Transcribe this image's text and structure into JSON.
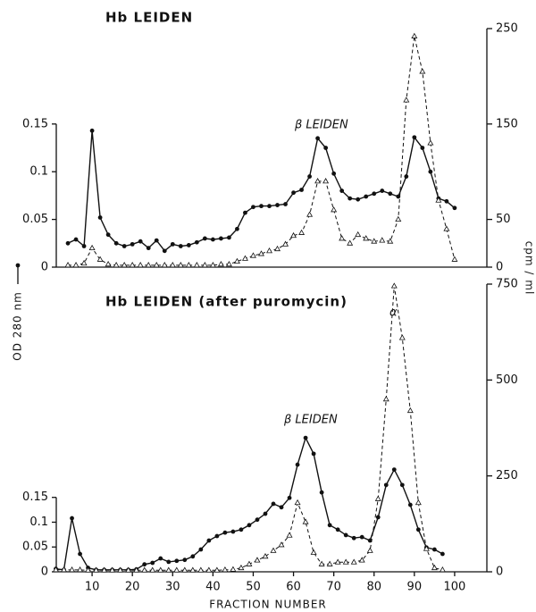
{
  "chart_data": [
    {
      "type": "line",
      "title": "Hb LEIDEN",
      "annotations": [
        "β LEIDEN"
      ],
      "y_label": "OD 280 nm",
      "y2_label": "cpm / ml",
      "xlim": [
        0,
        108
      ],
      "ylim": [
        0,
        0.25
      ],
      "yticks": [
        0,
        0.05,
        0.1,
        0.15
      ],
      "y2lim": [
        0,
        250
      ],
      "y2ticks": [
        0,
        50,
        150,
        250
      ],
      "series": [
        {
          "style": "solid",
          "marker": "circle",
          "color": "#111",
          "x": [
            4,
            6,
            8,
            10,
            12,
            14,
            16,
            18,
            20,
            22,
            24,
            26,
            28,
            30,
            32,
            34,
            36,
            38,
            40,
            42,
            44,
            46,
            48,
            50,
            52,
            54,
            56,
            58,
            60,
            62,
            64,
            66,
            68,
            70,
            72,
            74,
            76,
            78,
            80,
            82,
            84,
            86,
            88,
            90,
            92,
            94,
            96,
            98,
            100
          ],
          "values": [
            0.025,
            0.029,
            0.022,
            0.143,
            0.052,
            0.034,
            0.025,
            0.022,
            0.024,
            0.027,
            0.02,
            0.028,
            0.017,
            0.024,
            0.022,
            0.023,
            0.026,
            0.03,
            0.029,
            0.03,
            0.031,
            0.04,
            0.057,
            0.063,
            0.064,
            0.064,
            0.065,
            0.066,
            0.078,
            0.081,
            0.095,
            0.135,
            0.125,
            0.098,
            0.08,
            0.072,
            0.071,
            0.074,
            0.077,
            0.08,
            0.077,
            0.074,
            0.095,
            0.136,
            0.125,
            0.1,
            0.072,
            0.069,
            0.062
          ]
        },
        {
          "style": "dashed",
          "marker": "triangle",
          "color": "#111",
          "axis": "y2",
          "x": [
            4,
            6,
            8,
            10,
            12,
            14,
            16,
            18,
            20,
            22,
            24,
            26,
            28,
            30,
            32,
            34,
            36,
            38,
            40,
            42,
            44,
            46,
            48,
            50,
            52,
            54,
            56,
            58,
            60,
            62,
            64,
            66,
            68,
            70,
            72,
            74,
            76,
            78,
            80,
            82,
            84,
            86,
            88,
            90,
            92,
            94,
            96,
            98,
            100
          ],
          "values": [
            2,
            2,
            4,
            20,
            8,
            3,
            2,
            2,
            2,
            2,
            2,
            2,
            2,
            2,
            2,
            2,
            2,
            2,
            2,
            3,
            3,
            6,
            9,
            12,
            14,
            17,
            19,
            24,
            33,
            36,
            55,
            90,
            90,
            60,
            30,
            25,
            34,
            30,
            27,
            28,
            27,
            50,
            175,
            242,
            205,
            130,
            70,
            40,
            8
          ]
        }
      ]
    },
    {
      "type": "line",
      "title": "Hb LEIDEN (after puromycin)",
      "annotations": [
        "β LEIDEN",
        "α"
      ],
      "x_label": "FRACTION NUMBER",
      "xlim": [
        0,
        108
      ],
      "xticks": [
        10,
        20,
        30,
        40,
        50,
        60,
        70,
        80,
        90,
        100
      ],
      "ylim": [
        0,
        0.58
      ],
      "yticks": [
        0,
        0.05,
        0.1,
        0.15
      ],
      "y2lim": [
        0,
        750
      ],
      "y2ticks": [
        0,
        250,
        500,
        750
      ],
      "series": [
        {
          "style": "solid",
          "marker": "circle",
          "color": "#111",
          "x": [
            1,
            3,
            5,
            7,
            9,
            11,
            13,
            15,
            17,
            19,
            21,
            23,
            25,
            27,
            29,
            31,
            33,
            35,
            37,
            39,
            41,
            43,
            45,
            47,
            49,
            51,
            53,
            55,
            57,
            59,
            61,
            63,
            65,
            67,
            69,
            71,
            73,
            75,
            77,
            79,
            81,
            83,
            85,
            87,
            89,
            91,
            93,
            95,
            97
          ],
          "values": [
            0.006,
            0.004,
            0.108,
            0.036,
            0.008,
            0.004,
            0.004,
            0.004,
            0.004,
            0.004,
            0.005,
            0.015,
            0.018,
            0.027,
            0.02,
            0.022,
            0.024,
            0.031,
            0.045,
            0.063,
            0.072,
            0.079,
            0.081,
            0.085,
            0.094,
            0.105,
            0.117,
            0.137,
            0.13,
            0.149,
            0.216,
            0.27,
            0.238,
            0.16,
            0.094,
            0.085,
            0.074,
            0.068,
            0.07,
            0.063,
            0.11,
            0.175,
            0.206,
            0.175,
            0.135,
            0.085,
            0.049,
            0.045,
            0.036
          ]
        },
        {
          "style": "dashed",
          "marker": "triangle",
          "color": "#111",
          "axis": "y2",
          "x": [
            1,
            3,
            5,
            7,
            9,
            11,
            13,
            15,
            17,
            19,
            21,
            23,
            25,
            27,
            29,
            31,
            33,
            35,
            37,
            39,
            41,
            43,
            45,
            47,
            49,
            51,
            53,
            55,
            57,
            59,
            61,
            63,
            65,
            67,
            69,
            71,
            73,
            75,
            77,
            79,
            81,
            83,
            85,
            87,
            89,
            91,
            93,
            95,
            97
          ],
          "values": [
            5,
            5,
            5,
            5,
            4,
            4,
            4,
            4,
            4,
            4,
            4,
            4,
            4,
            4,
            4,
            4,
            4,
            4,
            4,
            4,
            4,
            5,
            6,
            10,
            20,
            30,
            40,
            55,
            70,
            95,
            180,
            130,
            50,
            20,
            20,
            25,
            25,
            25,
            30,
            55,
            190,
            450,
            745,
            610,
            420,
            180,
            60,
            10,
            5
          ]
        }
      ]
    }
  ]
}
